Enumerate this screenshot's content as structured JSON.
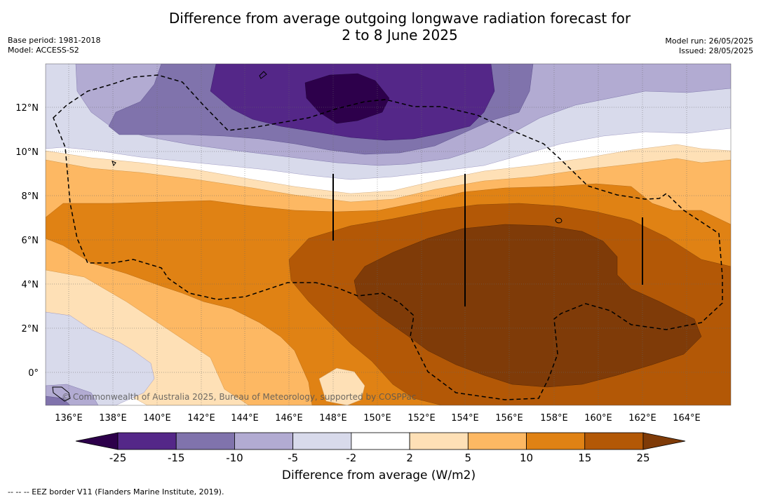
{
  "title_line1": "Difference from average outgoing longwave radiation forecast for",
  "title_line2": "2 to 8 June 2025",
  "base_period": "Base period: 1981-2018",
  "model": "Model: ACCESS-S2",
  "model_run": "Model run: 26/05/2025",
  "issued": "Issued: 28/05/2025",
  "copyright": "© Commonwealth of Australia 2025, Bureau of Meteorology, supported by COSPPac",
  "footer": "-- -- -- EEZ border V11 (Flanders Marine Institute, 2019).",
  "colorbar": {
    "title": "Difference from average (W/m2)",
    "ticks": [
      "-25",
      "-15",
      "-10",
      "-5",
      "-2",
      "2",
      "5",
      "10",
      "15",
      "25"
    ],
    "colors": {
      "below_min": "#2d004b",
      "n25_n15": "#542788",
      "n15_n10": "#8073ac",
      "n10_n5": "#b2abd2",
      "n5_n2": "#d8daeb",
      "n2_p2": "#ffffff",
      "p2_p5": "#fee0b6",
      "p5_p10": "#fdb863",
      "p10_p15": "#e08214",
      "p15_p25": "#b35806",
      "above_max": "#7f3b08"
    }
  },
  "map": {
    "lon_labels": [
      "136°E",
      "138°E",
      "140°E",
      "142°E",
      "144°E",
      "146°E",
      "148°E",
      "150°E",
      "152°E",
      "154°E",
      "156°E",
      "158°E",
      "160°E",
      "162°E",
      "164°E"
    ],
    "lat_labels": [
      "12°N",
      "10°N",
      "8°N",
      "6°N",
      "4°N",
      "2°N",
      "0°"
    ]
  }
}
